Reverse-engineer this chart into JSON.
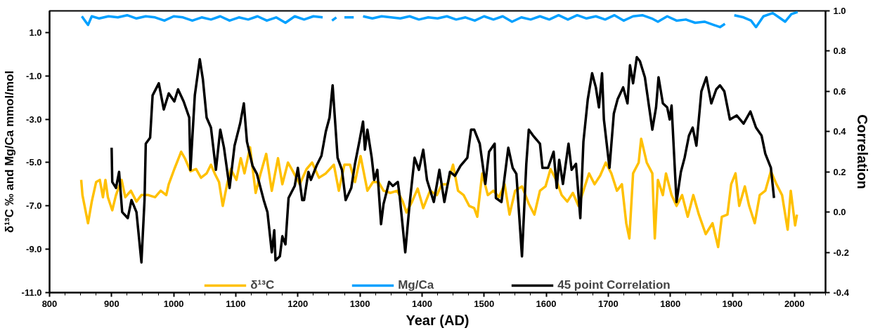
{
  "chart_data": {
    "type": "line",
    "xlabel": "Year (AD)",
    "ylabel": "δ¹³C ‰ and Mg/Ca mmol/mol",
    "y2label": "Correlation",
    "xlim": [
      800,
      2050
    ],
    "xticks": [
      800,
      900,
      1000,
      1100,
      1200,
      1300,
      1400,
      1500,
      1600,
      1700,
      1800,
      1900,
      2000
    ],
    "ylim": [
      -11,
      2
    ],
    "yticks": [
      {
        "value": -11,
        "label": "-11.0"
      },
      {
        "value": -9,
        "label": "-9.0"
      },
      {
        "value": -7,
        "label": "-7.0"
      },
      {
        "value": -5,
        "label": "-5.0"
      },
      {
        "value": -3,
        "label": "-3.0"
      },
      {
        "value": -1,
        "label": "-1.0"
      },
      {
        "value": 1,
        "label": "1.0"
      }
    ],
    "y2lim": [
      -0.4,
      1.0
    ],
    "y2ticks": [
      {
        "value": -0.4,
        "label": "-0.4"
      },
      {
        "value": -0.2,
        "label": "-0.2"
      },
      {
        "value": 0,
        "label": "0.0"
      },
      {
        "value": 0.2,
        "label": "0.2"
      },
      {
        "value": 0.4,
        "label": "0.4"
      },
      {
        "value": 0.6,
        "label": "0.6"
      },
      {
        "value": 0.8,
        "label": "0.8"
      },
      {
        "value": 1.0,
        "label": "1.0"
      }
    ],
    "grid": false,
    "legend": "bottom",
    "series": [
      {
        "name": "δ¹³C",
        "color": "#ffc000",
        "x": [
          851,
          853,
          862,
          868,
          875,
          881,
          886,
          890,
          894,
          901,
          907,
          916,
          922,
          931,
          940,
          948,
          959,
          970,
          979,
          988,
          992,
          1001,
          1012,
          1018,
          1027,
          1036,
          1044,
          1053,
          1060,
          1066,
          1073,
          1079,
          1086,
          1092,
          1101,
          1108,
          1114,
          1123,
          1132,
          1140,
          1149,
          1158,
          1168,
          1175,
          1184,
          1192,
          1203,
          1214,
          1223,
          1234,
          1245,
          1258,
          1266,
          1275,
          1284,
          1292,
          1301,
          1312,
          1321,
          1330,
          1338,
          1349,
          1360,
          1369,
          1375,
          1384,
          1393,
          1402,
          1413,
          1424,
          1432,
          1441,
          1450,
          1458,
          1467,
          1476,
          1484,
          1489,
          1497,
          1506,
          1515,
          1524,
          1533,
          1541,
          1550,
          1561,
          1572,
          1581,
          1590,
          1599,
          1607,
          1616,
          1625,
          1634,
          1643,
          1652,
          1660,
          1669,
          1678,
          1687,
          1696,
          1705,
          1714,
          1722,
          1729,
          1734,
          1740,
          1749,
          1753,
          1762,
          1771,
          1775,
          1780,
          1788,
          1793,
          1802,
          1810,
          1819,
          1828,
          1837,
          1846,
          1857,
          1868,
          1877,
          1883,
          1892,
          1898,
          1905,
          1911,
          1920,
          1927,
          1936,
          1944,
          1953,
          1962,
          1971,
          1980,
          1989,
          1994,
          2001,
          2004
        ],
        "values": [
          -5.8,
          -6.5,
          -7.8,
          -6.8,
          -5.9,
          -5.8,
          -6.6,
          -5.8,
          -6.6,
          -7.2,
          -6.5,
          -5.8,
          -6.6,
          -6.3,
          -6.8,
          -6.5,
          -6.5,
          -6.6,
          -6.3,
          -6.5,
          -6.0,
          -5.3,
          -4.5,
          -4.8,
          -5.4,
          -5.3,
          -5.7,
          -5.5,
          -5.1,
          -5.5,
          -5.9,
          -7.0,
          -6.0,
          -5.3,
          -5.8,
          -4.8,
          -5.5,
          -4.3,
          -6.4,
          -5.5,
          -4.6,
          -6.3,
          -4.8,
          -6.0,
          -5.0,
          -5.4,
          -6.0,
          -5.3,
          -5.0,
          -5.7,
          -5.5,
          -5.1,
          -6.3,
          -5.1,
          -5.1,
          -5.9,
          -4.7,
          -6.3,
          -5.9,
          -5.9,
          -6.3,
          -6.4,
          -6.3,
          -6.8,
          -7.3,
          -6.8,
          -6.2,
          -7.1,
          -6.3,
          -6.5,
          -6.0,
          -6.0,
          -5.1,
          -6.3,
          -6.5,
          -7.0,
          -7.1,
          -7.5,
          -5.5,
          -6.5,
          -6.3,
          -6.6,
          -6.0,
          -7.4,
          -6.3,
          -6.1,
          -6.9,
          -7.4,
          -6.3,
          -6.1,
          -5.3,
          -5.8,
          -6.5,
          -6.8,
          -6.4,
          -7.0,
          -6.3,
          -5.5,
          -6.0,
          -5.6,
          -5.0,
          -5.5,
          -6.3,
          -6.0,
          -7.8,
          -8.5,
          -5.5,
          -5.0,
          -3.9,
          -5.0,
          -5.5,
          -8.5,
          -5.8,
          -6.5,
          -5.5,
          -6.5,
          -7.0,
          -6.5,
          -7.5,
          -6.5,
          -7.4,
          -8.3,
          -7.8,
          -8.9,
          -7.5,
          -7.4,
          -6.0,
          -5.5,
          -7.0,
          -6.1,
          -7.0,
          -7.8,
          -6.5,
          -6.3,
          -5.4,
          -6.0,
          -6.5,
          -8.1,
          -6.3,
          -7.9,
          -7.4
        ]
      },
      {
        "name": "Mg/Ca",
        "color": "#00a0ff",
        "x": [
          852,
          857,
          862,
          868,
          880,
          895,
          910,
          925,
          940,
          955,
          970,
          985,
          1000,
          1015,
          1030,
          1045,
          1060,
          1075,
          1090,
          1105,
          1120,
          1135,
          1150,
          1165,
          1180,
          1195,
          1210,
          1225,
          1240,
          1248,
          1255,
          1262,
          1268,
          1275,
          1290,
          1300,
          1305,
          1320,
          1335,
          1350,
          1365,
          1380,
          1395,
          1410,
          1425,
          1440,
          1455,
          1470,
          1485,
          1500,
          1515,
          1530,
          1545,
          1560,
          1575,
          1590,
          1605,
          1620,
          1635,
          1650,
          1665,
          1680,
          1695,
          1710,
          1725,
          1740,
          1755,
          1770,
          1780,
          1795,
          1810,
          1825,
          1840,
          1855,
          1870,
          1880,
          1888,
          1895,
          1903,
          1918,
          1930,
          1938,
          1950,
          1965,
          1975,
          1985,
          1995,
          2005
        ],
        "values": [
          1.75,
          1.55,
          1.35,
          1.75,
          1.65,
          1.75,
          1.7,
          1.8,
          1.65,
          1.75,
          1.7,
          1.55,
          1.75,
          1.7,
          1.55,
          1.7,
          1.6,
          1.75,
          1.55,
          1.7,
          1.6,
          1.75,
          1.55,
          1.7,
          1.45,
          1.75,
          1.6,
          1.75,
          1.7,
          null,
          1.55,
          1.7,
          null,
          1.7,
          1.7,
          null,
          1.75,
          1.65,
          1.75,
          1.7,
          1.65,
          1.75,
          1.6,
          1.7,
          1.65,
          1.75,
          1.6,
          1.7,
          1.55,
          1.75,
          1.6,
          1.75,
          1.5,
          1.7,
          1.6,
          1.75,
          1.6,
          1.8,
          1.6,
          1.8,
          1.65,
          1.75,
          1.6,
          1.8,
          1.55,
          1.75,
          1.8,
          1.65,
          1.5,
          1.75,
          1.55,
          1.6,
          1.45,
          1.5,
          1.35,
          1.25,
          1.4,
          null,
          1.8,
          1.7,
          1.55,
          1.25,
          1.75,
          1.9,
          1.7,
          1.5,
          1.85,
          1.95
        ]
      },
      {
        "name": "45 point Correlation",
        "color": "#000000",
        "axis": "y2",
        "x": [
          900,
          901,
          907,
          912,
          917,
          926,
          932,
          940,
          948,
          953,
          955,
          962,
          966,
          976,
          984,
          992,
          1001,
          1007,
          1016,
          1025,
          1027,
          1034,
          1042,
          1047,
          1053,
          1060,
          1068,
          1075,
          1081,
          1090,
          1098,
          1107,
          1113,
          1118,
          1127,
          1134,
          1145,
          1151,
          1158,
          1162,
          1164,
          1171,
          1175,
          1180,
          1185,
          1195,
          1200,
          1207,
          1210,
          1217,
          1221,
          1230,
          1238,
          1245,
          1251,
          1256,
          1260,
          1264,
          1271,
          1277,
          1286,
          1292,
          1299,
          1305,
          1308,
          1312,
          1319,
          1323,
          1328,
          1334,
          1338,
          1347,
          1353,
          1361,
          1364,
          1373,
          1380,
          1388,
          1395,
          1402,
          1408,
          1419,
          1428,
          1436,
          1445,
          1453,
          1462,
          1473,
          1479,
          1484,
          1493,
          1502,
          1508,
          1517,
          1519,
          1528,
          1539,
          1546,
          1552,
          1561,
          1568,
          1572,
          1579,
          1590,
          1594,
          1603,
          1612,
          1617,
          1621,
          1627,
          1636,
          1641,
          1648,
          1655,
          1660,
          1667,
          1674,
          1680,
          1685,
          1690,
          1693,
          1702,
          1709,
          1715,
          1724,
          1731,
          1735,
          1740,
          1746,
          1751,
          1759,
          1771,
          1777,
          1781,
          1788,
          1795,
          1799,
          1802,
          1806,
          1810,
          1817,
          1823,
          1830,
          1836,
          1842,
          1850,
          1858,
          1866,
          1874,
          1880,
          1887,
          1896,
          1907,
          1918,
          1929,
          1938,
          1947,
          1953,
          1962,
          1967
        ],
        "values": [
          0.32,
          0.15,
          0.12,
          0.2,
          0.0,
          -0.03,
          0.06,
          0.0,
          -0.25,
          0.06,
          0.34,
          0.37,
          0.58,
          0.64,
          0.51,
          0.59,
          0.55,
          0.61,
          0.55,
          0.47,
          0.21,
          0.58,
          0.76,
          0.66,
          0.47,
          0.42,
          0.21,
          0.41,
          0.32,
          0.12,
          0.33,
          0.44,
          0.54,
          0.35,
          0.23,
          0.19,
          0.06,
          0.0,
          -0.2,
          -0.09,
          -0.24,
          -0.22,
          -0.12,
          -0.16,
          0.07,
          0.13,
          0.22,
          0.06,
          0.06,
          0.2,
          0.16,
          0.23,
          0.28,
          0.4,
          0.47,
          0.63,
          0.45,
          0.27,
          0.21,
          0.06,
          0.12,
          0.24,
          0.35,
          0.45,
          0.31,
          0.41,
          0.27,
          0.16,
          0.21,
          -0.06,
          0.04,
          0.15,
          0.13,
          0.15,
          0.08,
          -0.2,
          0.04,
          0.27,
          0.21,
          0.31,
          0.16,
          0.05,
          0.21,
          0.05,
          0.2,
          0.18,
          0.23,
          0.27,
          0.41,
          0.41,
          0.34,
          0.14,
          0.3,
          0.34,
          0.07,
          0.05,
          0.32,
          0.22,
          0.19,
          -0.22,
          0.24,
          0.41,
          0.38,
          0.34,
          0.22,
          0.22,
          0.3,
          0.12,
          0.26,
          0.14,
          0.34,
          0.21,
          0.24,
          -0.03,
          0.35,
          0.56,
          0.69,
          0.62,
          0.52,
          0.69,
          0.46,
          0.22,
          0.49,
          0.56,
          0.62,
          0.54,
          0.73,
          0.64,
          0.77,
          0.75,
          0.67,
          0.41,
          0.52,
          0.67,
          0.54,
          0.52,
          0.46,
          0.53,
          0.29,
          0.05,
          0.2,
          0.27,
          0.38,
          0.42,
          0.33,
          0.6,
          0.67,
          0.54,
          0.61,
          0.63,
          0.6,
          0.46,
          0.48,
          0.44,
          0.5,
          0.42,
          0.38,
          0.29,
          0.22,
          0.07
        ]
      }
    ]
  }
}
